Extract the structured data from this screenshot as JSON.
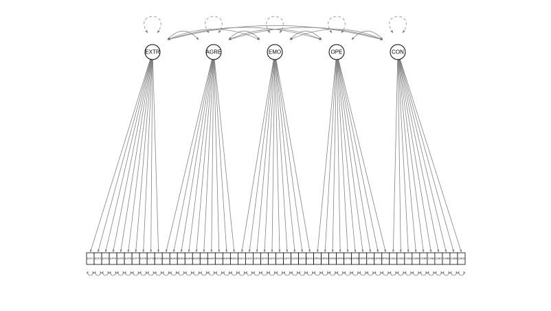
{
  "diagram": {
    "type": "sem-path-diagram",
    "colors": {
      "edge": "#808080",
      "node_stroke": "#000000",
      "background": "#ffffff"
    },
    "latents": [
      {
        "id": "EXTR",
        "label": "EXTR",
        "items": [
          "EXT1",
          "EXT2",
          "EXT3",
          "EXT4",
          "EXT5",
          "EXT6",
          "EXT7",
          "EXT8",
          "EXT9",
          "EXT10"
        ]
      },
      {
        "id": "AGRE",
        "label": "AGRE",
        "items": [
          "AGR1",
          "AGR2",
          "AGR3",
          "AGR4",
          "AGR5",
          "AGR6",
          "AGR7",
          "AGR8",
          "AGR9",
          "AGR10"
        ]
      },
      {
        "id": "EMO",
        "label": "EMO",
        "items": [
          "EST1",
          "EST2",
          "EST3",
          "EST4",
          "EST5",
          "EST6",
          "EST7",
          "EST8",
          "EST9",
          "EST10"
        ]
      },
      {
        "id": "OPE",
        "label": "OPE",
        "items": [
          "OPN1",
          "OPN2",
          "OPN3",
          "OPN4",
          "OPN5",
          "OPN6",
          "OPN7",
          "OPN8",
          "OPN9",
          "OPN10"
        ]
      },
      {
        "id": "CON",
        "label": "CON",
        "items": [
          "CSN1",
          "CSN2",
          "CSN3",
          "CSN4",
          "CSN5",
          "CSN6",
          "CSN7",
          "CSN8",
          "CSN9",
          "CSN10"
        ]
      }
    ],
    "covariances": [
      [
        "EXTR",
        "AGRE"
      ],
      [
        "EXTR",
        "EMO"
      ],
      [
        "EXTR",
        "OPE"
      ],
      [
        "EXTR",
        "CON"
      ],
      [
        "AGRE",
        "EMO"
      ],
      [
        "AGRE",
        "OPE"
      ],
      [
        "AGRE",
        "CON"
      ],
      [
        "EMO",
        "OPE"
      ],
      [
        "EMO",
        "CON"
      ],
      [
        "OPE",
        "CON"
      ]
    ]
  }
}
